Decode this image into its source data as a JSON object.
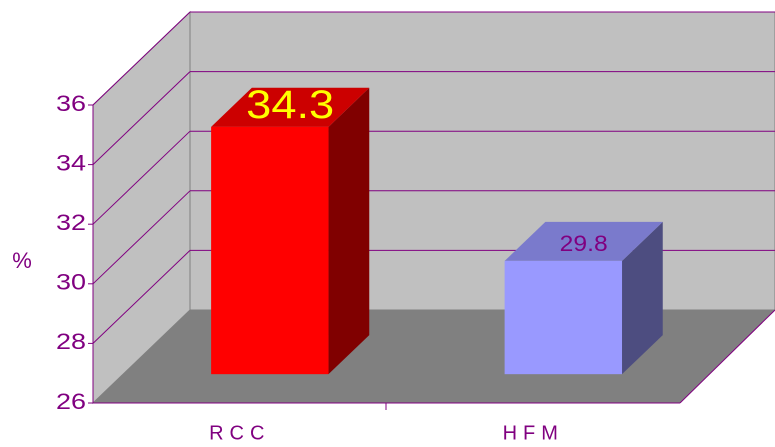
{
  "chart_data": {
    "type": "bar3d",
    "y_label": "%",
    "categories": [
      "RCC",
      "HFM"
    ],
    "values": [
      34.3,
      29.8
    ],
    "colors": [
      "#ff0000",
      "#9999ff"
    ],
    "value_label_colors": [
      "#ffff00",
      "#800080"
    ],
    "ylim": [
      26,
      36
    ],
    "yticks": [
      26,
      28,
      30,
      32,
      34,
      36
    ],
    "grid": true
  }
}
